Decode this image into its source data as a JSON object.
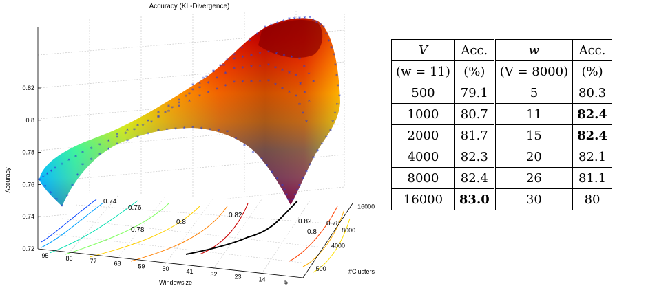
{
  "chart_data": {
    "type": "surface",
    "title": "Accuracy (KL-Divergence)",
    "zlabel": "Accuracy",
    "xlabel": "Windowsize",
    "ylabel": "#Clusters",
    "zlim": [
      0.72,
      0.83
    ],
    "z_ticks": [
      "0.72",
      "0.74",
      "0.76",
      "0.78",
      "0.8",
      "0.82"
    ],
    "x_ticks": [
      "95",
      "86",
      "77",
      "68",
      "59",
      "50",
      "41",
      "32",
      "23",
      "14",
      "5"
    ],
    "y_ticks": [
      "500",
      "4000",
      "8000",
      "16000"
    ],
    "contour_labels": [
      "0.74",
      "0.76",
      "0.78",
      "0.8",
      "0.82",
      "0.82",
      "0.78",
      "0.8"
    ],
    "colormap": "jet",
    "marker": "*",
    "marker_color": "#2f3fd0",
    "grid": true
  },
  "table": {
    "headers": [
      {
        "top": "V",
        "bottom": "(w = 11)"
      },
      {
        "top": "Acc.",
        "bottom": "(%)"
      },
      {
        "top": "w",
        "bottom": "(V = 8000)"
      },
      {
        "top": "Acc.",
        "bottom": "(%)"
      }
    ],
    "rows": [
      {
        "V": "500",
        "acc_v": "79.1",
        "w": "5",
        "acc_w": "80.3",
        "bold_v": false,
        "bold_w": false
      },
      {
        "V": "1000",
        "acc_v": "80.7",
        "w": "11",
        "acc_w": "82.4",
        "bold_v": false,
        "bold_w": true
      },
      {
        "V": "2000",
        "acc_v": "81.7",
        "w": "15",
        "acc_w": "82.4",
        "bold_v": false,
        "bold_w": true
      },
      {
        "V": "4000",
        "acc_v": "82.3",
        "w": "20",
        "acc_w": "82.1",
        "bold_v": false,
        "bold_w": false
      },
      {
        "V": "8000",
        "acc_v": "82.4",
        "w": "26",
        "acc_w": "81.1",
        "bold_v": false,
        "bold_w": false
      },
      {
        "V": "16000",
        "acc_v": "83.0",
        "w": "30",
        "acc_w": "80",
        "bold_v": true,
        "bold_w": false
      }
    ]
  }
}
